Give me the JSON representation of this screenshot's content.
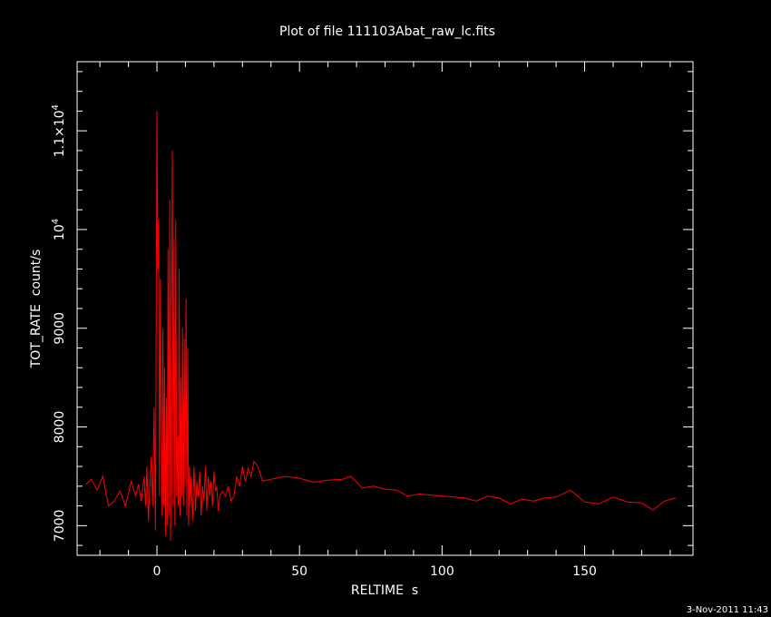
{
  "chart_data": {
    "type": "line",
    "title": "Plot of file 111103Abat_raw_lc.fits",
    "xlabel": "RELTIME  s",
    "ylabel": "TOT_RATE  count/s",
    "xlim": [
      -28,
      188
    ],
    "ylim": [
      6700,
      11700
    ],
    "grid": false,
    "x_ticks": [
      {
        "value": 0,
        "label": "0"
      },
      {
        "value": 50,
        "label": "50"
      },
      {
        "value": 100,
        "label": "100"
      },
      {
        "value": 150,
        "label": "150"
      }
    ],
    "y_ticks": [
      {
        "value": 7000,
        "label": "7000",
        "exp": ""
      },
      {
        "value": 8000,
        "label": "8000",
        "exp": ""
      },
      {
        "value": 9000,
        "label": "9000",
        "exp": ""
      },
      {
        "value": 10000,
        "label": "10",
        "exp": "4"
      },
      {
        "value": 11000,
        "label": "1.1×10",
        "exp": "4"
      }
    ],
    "series": [
      {
        "color": "#ff0000",
        "x": [
          -25,
          -23,
          -21,
          -19,
          -17,
          -15,
          -13,
          -11,
          -9,
          -7.5,
          -6.5,
          -5.5,
          -4.5,
          -4,
          -3.5,
          -3,
          -2.5,
          -2,
          -1.5,
          -1,
          -0.5,
          0,
          0.3,
          0.6,
          0.9,
          1.2,
          1.5,
          1.8,
          2.1,
          2.4,
          2.7,
          3,
          3.3,
          3.6,
          3.9,
          4.2,
          4.5,
          4.8,
          5.1,
          5.4,
          5.7,
          6,
          6.3,
          6.6,
          6.9,
          7.2,
          7.5,
          7.8,
          8.1,
          8.4,
          8.7,
          9,
          9.3,
          9.6,
          9.9,
          10.2,
          10.5,
          10.8,
          11.1,
          11.4,
          11.7,
          12,
          12.5,
          13,
          13.5,
          14,
          14.5,
          15,
          15.5,
          16,
          16.5,
          17,
          17.5,
          18,
          18.5,
          19,
          19.5,
          20,
          20.5,
          21,
          21.5,
          22,
          23,
          24,
          25,
          26,
          27,
          28,
          29,
          30,
          31,
          32,
          33,
          34,
          35,
          36,
          37,
          40,
          45,
          50,
          55,
          60,
          65,
          68,
          72,
          76,
          80,
          84,
          88,
          92,
          96,
          100,
          104,
          108,
          112,
          116,
          120,
          124,
          128,
          132,
          136,
          140,
          145,
          150,
          155,
          160,
          165,
          170,
          174,
          178,
          182
        ],
        "y": [
          7420,
          7470,
          7360,
          7500,
          7200,
          7250,
          7350,
          7200,
          7450,
          7300,
          7420,
          7250,
          7500,
          7200,
          7600,
          7050,
          7400,
          7700,
          7200,
          8200,
          6950,
          11200,
          9600,
          10100,
          7300,
          9500,
          8000,
          7100,
          9000,
          7200,
          8600,
          6900,
          8300,
          7000,
          9800,
          7100,
          10300,
          6850,
          9100,
          10800,
          7200,
          9900,
          7000,
          10100,
          7300,
          7900,
          7200,
          9600,
          7100,
          8500,
          7300,
          9000,
          7200,
          8900,
          7400,
          9300,
          7100,
          8800,
          7000,
          7600,
          7200,
          7500,
          7050,
          7600,
          7150,
          7450,
          7300,
          7550,
          7100,
          7400,
          7250,
          7600,
          7150,
          7500,
          7300,
          7450,
          7200,
          7550,
          7350,
          7400,
          7150,
          7300,
          7350,
          7300,
          7400,
          7250,
          7300,
          7500,
          7400,
          7600,
          7450,
          7580,
          7500,
          7650,
          7620,
          7550,
          7450,
          7470,
          7500,
          7480,
          7440,
          7460,
          7470,
          7500,
          7380,
          7400,
          7370,
          7360,
          7300,
          7320,
          7310,
          7300,
          7290,
          7280,
          7250,
          7300,
          7280,
          7220,
          7270,
          7250,
          7280,
          7290,
          7360,
          7240,
          7220,
          7290,
          7240,
          7230,
          7160,
          7250,
          7280
        ]
      }
    ]
  },
  "timestamp": "3-Nov-2011 11:43"
}
